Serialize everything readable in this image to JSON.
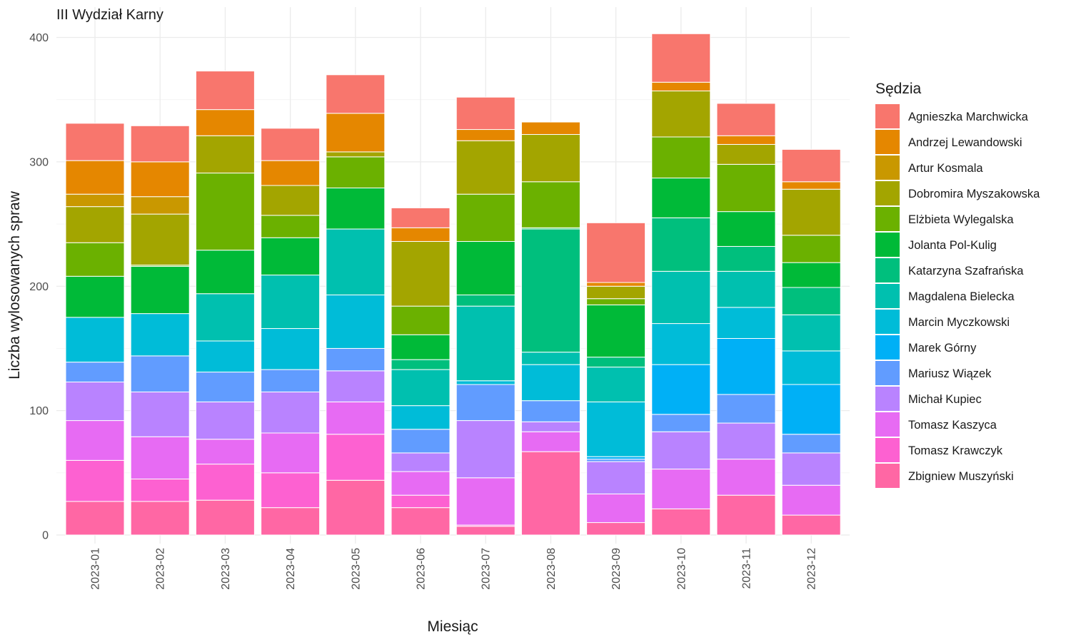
{
  "chart_data": {
    "type": "bar",
    "stacked": true,
    "title": "III Wydział Karny",
    "xlabel": "Miesiąc",
    "ylabel": "Liczba wylosowanych spraw",
    "ylim": [
      0,
      420
    ],
    "yticks": [
      0,
      100,
      200,
      300,
      400
    ],
    "grid": true,
    "legend_title": "Sędzia",
    "legend_position": "right",
    "categories": [
      "2023-01",
      "2023-02",
      "2023-03",
      "2023-04",
      "2023-05",
      "2023-06",
      "2023-07",
      "2023-08",
      "2023-09",
      "2023-10",
      "2023-11",
      "2023-12"
    ],
    "series": [
      {
        "name": "Agnieszka Marchwicka",
        "color": "#F8766D",
        "values": [
          30,
          29,
          31,
          26,
          31,
          16,
          26,
          0,
          48,
          39,
          26,
          26
        ]
      },
      {
        "name": "Andrzej Lewandowski",
        "color": "#E58700",
        "values": [
          27,
          28,
          21,
          20,
          31,
          11,
          9,
          10,
          3,
          7,
          7,
          6
        ]
      },
      {
        "name": "Artur Kosmala",
        "color": "#C99800",
        "values": [
          10,
          14,
          0,
          0,
          0,
          0,
          0,
          0,
          0,
          0,
          0,
          0
        ]
      },
      {
        "name": "Dobromira Myszakowska",
        "color": "#A3A500",
        "values": [
          29,
          41,
          30,
          24,
          4,
          52,
          43,
          38,
          10,
          37,
          16,
          37
        ]
      },
      {
        "name": "Elżbieta Wylegalska",
        "color": "#6BB100",
        "values": [
          27,
          1,
          62,
          18,
          25,
          23,
          38,
          37,
          5,
          33,
          38,
          22
        ]
      },
      {
        "name": "Jolanta Pol-Kulig",
        "color": "#00BA38",
        "values": [
          33,
          38,
          35,
          30,
          33,
          20,
          43,
          1,
          42,
          32,
          28,
          20
        ]
      },
      {
        "name": "Katarzyna Szafrańska",
        "color": "#00BF7D",
        "values": [
          0,
          0,
          0,
          0,
          0,
          8,
          9,
          99,
          8,
          43,
          20,
          22
        ]
      },
      {
        "name": "Magdalena Bielecka",
        "color": "#00C0AF",
        "values": [
          0,
          0,
          38,
          43,
          53,
          29,
          60,
          10,
          28,
          42,
          29,
          29
        ]
      },
      {
        "name": "Marcin Myczkowski",
        "color": "#00BCD8",
        "values": [
          36,
          34,
          25,
          33,
          43,
          19,
          3,
          29,
          44,
          33,
          25,
          27
        ]
      },
      {
        "name": "Marek Górny",
        "color": "#00B0F6",
        "values": [
          0,
          0,
          0,
          0,
          0,
          0,
          0,
          0,
          2,
          40,
          45,
          40
        ]
      },
      {
        "name": "Mariusz Wiązek",
        "color": "#619CFF",
        "values": [
          16,
          29,
          24,
          18,
          18,
          19,
          29,
          17,
          2,
          14,
          23,
          15
        ]
      },
      {
        "name": "Michał Kupiec",
        "color": "#B983FF",
        "values": [
          31,
          36,
          30,
          33,
          25,
          15,
          46,
          8,
          26,
          30,
          29,
          26
        ]
      },
      {
        "name": "Tomasz Kaszyca",
        "color": "#E76BF3",
        "values": [
          32,
          34,
          20,
          32,
          26,
          19,
          38,
          16,
          23,
          32,
          29,
          24
        ]
      },
      {
        "name": "Tomasz Krawczyk",
        "color": "#FD61D1",
        "values": [
          33,
          18,
          29,
          28,
          37,
          10,
          1,
          0,
          0,
          0,
          0,
          0
        ]
      },
      {
        "name": "Zbigniew Muszyński",
        "color": "#FF67A4",
        "values": [
          27,
          27,
          28,
          22,
          44,
          22,
          7,
          67,
          10,
          21,
          32,
          16
        ]
      }
    ]
  }
}
